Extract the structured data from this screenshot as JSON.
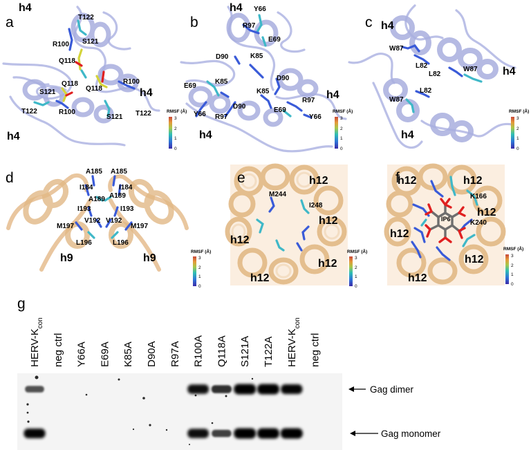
{
  "panels": [
    {
      "id": "a",
      "letter": "a",
      "theme": "blue",
      "helix": [
        "h4",
        "h4",
        "h4"
      ],
      "residues": [
        "T122",
        "S121",
        "R100",
        "Q118",
        "Q118",
        "Q118",
        "R100",
        "S121",
        "T122",
        "R100",
        "S121",
        "T122"
      ]
    },
    {
      "id": "b",
      "letter": "b",
      "theme": "blue",
      "helix": [
        "h4",
        "h4",
        "h4"
      ],
      "residues": [
        "Y66",
        "R97",
        "E69",
        "K85",
        "D90",
        "D90",
        "E69",
        "K85",
        "K85",
        "D90",
        "R97",
        "E69",
        "R97",
        "Y66",
        "Y66"
      ]
    },
    {
      "id": "c",
      "letter": "c",
      "theme": "blue",
      "helix": [
        "h4",
        "h4",
        "h4"
      ],
      "residues": [
        "W87",
        "L82",
        "L82",
        "W87",
        "L82",
        "W87"
      ]
    },
    {
      "id": "d",
      "letter": "d",
      "theme": "orange",
      "helix": [
        "h9",
        "h9"
      ],
      "residues": [
        "A185",
        "A185",
        "I184",
        "I184",
        "A189",
        "A189",
        "I193",
        "I193",
        "V192",
        "V192",
        "M197",
        "M197",
        "L196",
        "L196"
      ]
    },
    {
      "id": "e",
      "letter": "e",
      "theme": "orange",
      "helix": [
        "h12",
        "h12",
        "h12",
        "h12",
        "h12"
      ],
      "residues": [
        "M244",
        "I248"
      ]
    },
    {
      "id": "f",
      "letter": "f",
      "theme": "orange",
      "helix": [
        "h12",
        "h12",
        "h12",
        "h12",
        "h12",
        "h12"
      ],
      "residues": [
        "K166",
        "IP6",
        "K240"
      ]
    }
  ],
  "rmsf": {
    "title": "RMSF (Å)",
    "ticks": [
      "3",
      "2",
      "1",
      "0"
    ]
  },
  "gel": {
    "letter": "g",
    "lanes": [
      {
        "base": "HERV-K",
        "sub": "con",
        "dimer": 0.45,
        "monomer": 0.9
      },
      {
        "base": "neg ctrl",
        "sub": "",
        "dimer": 0,
        "monomer": 0
      },
      {
        "base": "Y66A",
        "sub": "",
        "dimer": 0,
        "monomer": 0
      },
      {
        "base": "E69A",
        "sub": "",
        "dimer": 0,
        "monomer": 0
      },
      {
        "base": "K85A",
        "sub": "",
        "dimer": 0,
        "monomer": 0
      },
      {
        "base": "D90A",
        "sub": "",
        "dimer": 0,
        "monomer": 0
      },
      {
        "base": "R97A",
        "sub": "",
        "dimer": 0,
        "monomer": 0
      },
      {
        "base": "R100A",
        "sub": "",
        "dimer": 0.85,
        "monomer": 0.85
      },
      {
        "base": "Q118A",
        "sub": "",
        "dimer": 0.65,
        "monomer": 0.55
      },
      {
        "base": "S121A",
        "sub": "",
        "dimer": 1,
        "monomer": 1
      },
      {
        "base": "T122A",
        "sub": "",
        "dimer": 1,
        "monomer": 1
      },
      {
        "base": "HERV-K",
        "sub": "con",
        "dimer": 0.9,
        "monomer": 1
      },
      {
        "base": "neg ctrl",
        "sub": "",
        "dimer": 0,
        "monomer": 0
      }
    ],
    "bands": {
      "dimer": "Gag dimer",
      "monomer": "Gag monomer"
    }
  },
  "colors": {
    "ribbon_blue": "#b8bde6",
    "ribbon_orange": "#e8c49a",
    "stick_blue": "#3a5bd8",
    "stick_cyan": "#3fb8c8",
    "ip6_gray": "#6e6e6e",
    "ip6_red": "#e02020"
  }
}
